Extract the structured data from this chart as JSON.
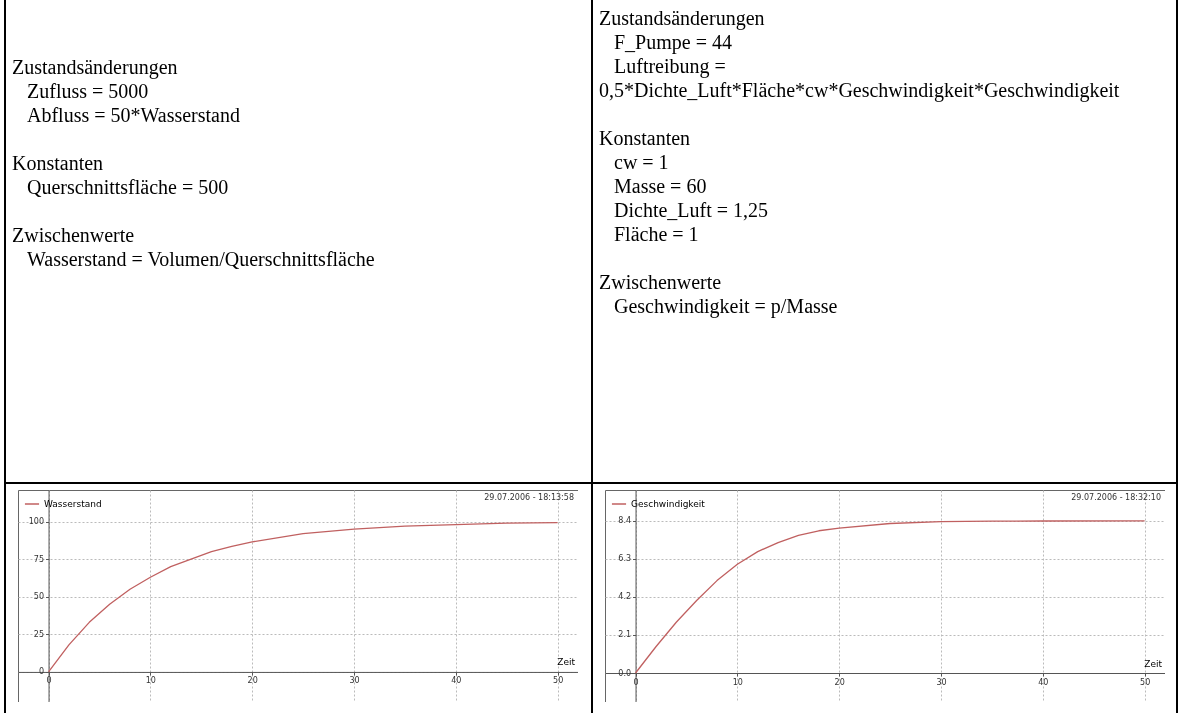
{
  "chart_data": [
    {
      "type": "other",
      "annotations": [
        "Zustandsänderungen",
        "   Zufluss = 5000",
        "   Abfluss = 50*Wasserstand",
        "Konstanten",
        "   Querschnittsfläche = 500",
        "Zwischenwerte",
        "   Wasserstand = Volumen/Querschnittsfläche"
      ]
    },
    {
      "type": "other",
      "annotations": [
        "Zustandsänderungen",
        "   F_Pumpe = 44",
        "   Luftreibung =",
        "0,5*Dichte_Luft*Fläche*cw*Geschwindigkeit*Geschwindigkeit",
        "Konstanten",
        "   cw = 1",
        "   Masse = 60",
        "   Dichte_Luft = 1,25",
        "   Fläche = 1",
        "Zwischenwerte",
        "   Geschwindigkeit = p/Masse"
      ]
    },
    {
      "type": "line",
      "xlabel": "Zeit",
      "annotations": [
        "29.07.2006 - 18:13:58"
      ],
      "legend": "top left",
      "grid": true,
      "x": [
        0,
        2,
        4,
        6,
        8,
        10,
        12,
        14,
        16,
        18,
        20,
        25,
        30,
        35,
        40,
        45,
        50
      ],
      "series": [
        {
          "name": "Wasserstand",
          "color": "#c06060",
          "values": [
            0,
            18,
            33,
            45,
            55,
            63,
            70,
            75,
            80,
            83.5,
            86.5,
            92,
            95,
            97,
            98,
            99,
            99.3
          ]
        }
      ],
      "xlim": [
        -3,
        52
      ],
      "xticks": [
        0,
        10,
        20,
        30,
        40,
        50
      ],
      "ylim": [
        -20,
        121
      ],
      "yticks": [
        0,
        25,
        50,
        75,
        100
      ]
    },
    {
      "type": "line",
      "xlabel": "Zeit",
      "annotations": [
        "29.07.2006 - 18:32:10"
      ],
      "legend": "top left",
      "grid": true,
      "x": [
        0,
        2,
        4,
        6,
        8,
        10,
        12,
        14,
        16,
        18,
        20,
        25,
        30,
        35,
        40,
        50
      ],
      "series": [
        {
          "name": "Geschwindigkeit",
          "color": "#c06060",
          "values": [
            0,
            1.45,
            2.8,
            4.0,
            5.1,
            6.0,
            6.7,
            7.2,
            7.6,
            7.85,
            8.0,
            8.25,
            8.35,
            8.38,
            8.39,
            8.4
          ]
        }
      ],
      "xlim": [
        -3,
        52
      ],
      "xticks": [
        0,
        10,
        20,
        30,
        40,
        50
      ],
      "ylim": [
        -1.6,
        10.1
      ],
      "yticks": [
        {
          "value": 0,
          "label": "0.0"
        },
        2.1,
        4.2,
        6.3,
        8.4
      ]
    }
  ]
}
